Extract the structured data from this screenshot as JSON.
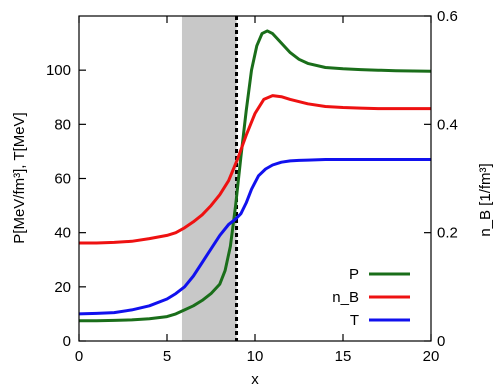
{
  "chart_data": {
    "type": "line",
    "xlabel": "x",
    "ylabel": "P[MeV/fm³], T[MeV]",
    "y2label": "n_B [1/fm³]",
    "xlim": [
      0,
      20
    ],
    "ylim": [
      0,
      120
    ],
    "y2lim": [
      0,
      0.6
    ],
    "xticks": [
      0,
      5,
      10,
      15,
      20
    ],
    "yticks": [
      0,
      20,
      40,
      60,
      80,
      100
    ],
    "y2ticks": [
      0,
      0.2,
      0.4,
      0.6
    ],
    "shaded_region": {
      "x": [
        5.85,
        8.95
      ],
      "color": "#c8c8c8"
    },
    "vertical_line": {
      "x": 8.95,
      "style": "dashed",
      "color": "#000000"
    },
    "legend": {
      "position": "bottom-right"
    },
    "series": [
      {
        "name": "P",
        "color": "#1a6e1a",
        "axis": "left",
        "x": [
          0,
          1,
          2,
          3,
          4,
          5,
          5.5,
          6,
          6.5,
          7,
          7.5,
          8,
          8.3,
          8.6,
          8.9,
          9.2,
          9.5,
          9.8,
          10.1,
          10.4,
          10.7,
          11,
          11.5,
          12,
          12.5,
          13,
          14,
          15,
          16,
          17,
          18,
          19,
          20
        ],
        "y": [
          7.5,
          7.5,
          7.6,
          7.8,
          8.2,
          9,
          10,
          11.5,
          13,
          15,
          17.5,
          21,
          26,
          35,
          50,
          68,
          85,
          100,
          109,
          113.5,
          114.5,
          113.5,
          110,
          106.5,
          104,
          102.5,
          101,
          100.5,
          100.2,
          100,
          99.8,
          99.7,
          99.6
        ]
      },
      {
        "name": "n_B",
        "color": "#ee1111",
        "axis": "right",
        "x": [
          0,
          1,
          2,
          3,
          4,
          5,
          5.5,
          6,
          6.5,
          7,
          7.5,
          8,
          8.5,
          9,
          9.5,
          10,
          10.5,
          11,
          11.5,
          12,
          13,
          14,
          15,
          16,
          17,
          18,
          19,
          20
        ],
        "y": [
          0.181,
          0.181,
          0.182,
          0.184,
          0.189,
          0.195,
          0.2,
          0.209,
          0.22,
          0.233,
          0.25,
          0.27,
          0.296,
          0.335,
          0.38,
          0.42,
          0.446,
          0.453,
          0.451,
          0.446,
          0.438,
          0.433,
          0.431,
          0.43,
          0.429,
          0.429,
          0.429,
          0.429
        ]
      },
      {
        "name": "T",
        "color": "#1111ee",
        "axis": "left",
        "x": [
          0,
          1,
          2,
          3,
          4,
          5,
          5.5,
          6,
          6.5,
          7,
          7.5,
          8,
          8.5,
          8.9,
          9.2,
          9.5,
          9.8,
          10.2,
          10.6,
          11,
          11.5,
          12,
          12.5,
          13,
          14,
          15,
          16,
          17,
          18,
          19,
          20
        ],
        "y": [
          10,
          10.2,
          10.5,
          11.5,
          13,
          15.5,
          17.5,
          20,
          24,
          29,
          34,
          39,
          43,
          45,
          47,
          51,
          56,
          61,
          63.5,
          65,
          66,
          66.5,
          66.7,
          66.8,
          67,
          67,
          67,
          67,
          67,
          67,
          67
        ]
      }
    ]
  }
}
